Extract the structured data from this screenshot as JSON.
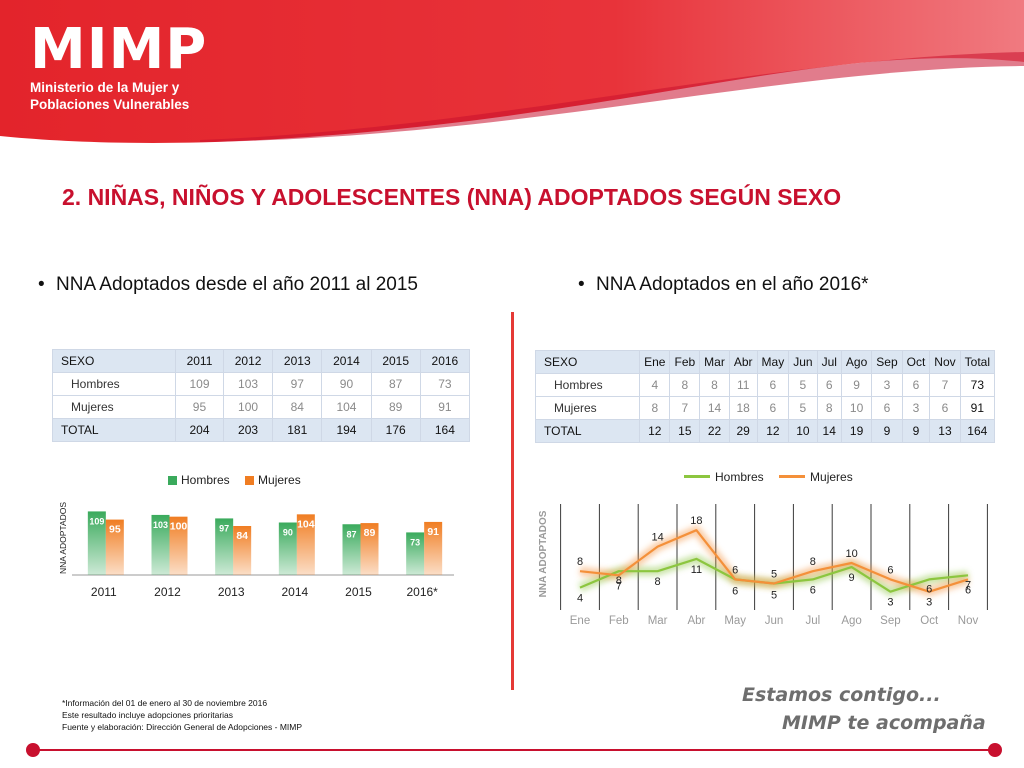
{
  "header": {
    "logo_main": "MIMP",
    "logo_line1": "Ministerio de la Mujer y",
    "logo_line2": "Poblaciones Vulnerables"
  },
  "page_title": "2. NIÑAS, NIÑOS Y ADOLESCENTES (NNA) ADOPTADOS SEGÚN SEXO",
  "left": {
    "bullet": "NNA Adoptados desde el año 2011 al 2015"
  },
  "right": {
    "bullet": "NNA Adoptados en el año 2016*"
  },
  "chart_data": [
    {
      "type": "table",
      "columns": [
        "SEXO",
        "2011",
        "2012",
        "2013",
        "2014",
        "2015",
        "2016"
      ],
      "rows": [
        [
          "Hombres",
          "109",
          "103",
          "97",
          "90",
          "87",
          "73"
        ],
        [
          "Mujeres",
          "95",
          "100",
          "84",
          "104",
          "89",
          "91"
        ],
        [
          "TOTAL",
          "204",
          "203",
          "181",
          "194",
          "176",
          "164"
        ]
      ]
    },
    {
      "type": "bar",
      "categories": [
        "2011",
        "2012",
        "2013",
        "2014",
        "2015",
        "2016*"
      ],
      "series": [
        {
          "name": "Hombres",
          "values": [
            109,
            103,
            97,
            90,
            87,
            73
          ]
        },
        {
          "name": "Mujeres",
          "values": [
            95,
            100,
            84,
            104,
            89,
            91
          ]
        }
      ],
      "ylabel": "NNA ADOPTADOS",
      "legend_position": "top",
      "ylim": [
        0,
        120
      ],
      "colors": [
        "#3aaa5c",
        "#f07d22"
      ]
    },
    {
      "type": "table",
      "columns": [
        "SEXO",
        "Ene",
        "Feb",
        "Mar",
        "Abr",
        "May",
        "Jun",
        "Jul",
        "Ago",
        "Sep",
        "Oct",
        "Nov",
        "Total"
      ],
      "rows": [
        [
          "Hombres",
          "4",
          "8",
          "8",
          "11",
          "6",
          "5",
          "6",
          "9",
          "3",
          "6",
          "7",
          "73"
        ],
        [
          "Mujeres",
          "8",
          "7",
          "14",
          "18",
          "6",
          "5",
          "8",
          "10",
          "6",
          "3",
          "6",
          "91"
        ],
        [
          "TOTAL",
          "12",
          "15",
          "22",
          "29",
          "12",
          "10",
          "14",
          "19",
          "9",
          "9",
          "13",
          "164"
        ]
      ]
    },
    {
      "type": "line",
      "x": [
        "Ene",
        "Feb",
        "Mar",
        "Abr",
        "May",
        "Jun",
        "Jul",
        "Ago",
        "Sep",
        "Oct",
        "Nov"
      ],
      "series": [
        {
          "name": "Hombres",
          "values": [
            4,
            8,
            8,
            11,
            6,
            5,
            6,
            9,
            3,
            6,
            7
          ]
        },
        {
          "name": "Mujeres",
          "values": [
            8,
            7,
            14,
            18,
            6,
            5,
            8,
            10,
            6,
            3,
            6
          ]
        }
      ],
      "ylabel": "NNA ADOPTADOS",
      "legend_position": "top",
      "ylim": [
        0,
        20
      ],
      "grid": "vertical",
      "colors": [
        "#8cc63f",
        "#f4903a"
      ]
    }
  ],
  "footnote": [
    "*Información del 01 de enero al 30 de noviembre 2016",
    "Este resultado incluye adopciones prioritarias",
    "Fuente y elaboración: Dirección General de Adopciones - MIMP"
  ],
  "tagline": {
    "line1": "Estamos contigo...",
    "line2": "MIMP te acompaña"
  },
  "colors": {
    "brand_red": "#c8102e",
    "header_red": "#e1242f",
    "table_header_bg": "#dce6f2"
  }
}
